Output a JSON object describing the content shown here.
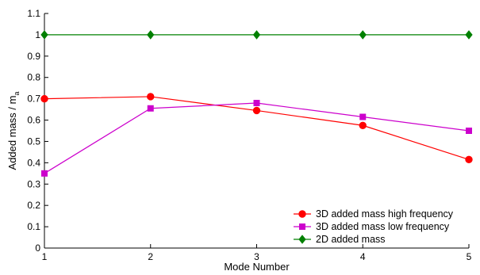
{
  "chart_data": {
    "type": "line",
    "x": [
      1,
      2,
      3,
      4,
      5
    ],
    "xticks": [
      "1",
      "2",
      "3",
      "4",
      "5"
    ],
    "yticks": [
      "0",
      "0.1",
      "0.2",
      "0.3",
      "0.4",
      "0.5",
      "0.6",
      "0.7",
      "0.8",
      "0.9",
      "1",
      "1.1"
    ],
    "xlabel": "Mode Number",
    "ylabel_main": "Added mass / m",
    "ylabel_sub": "a",
    "xlim": [
      1,
      5
    ],
    "ylim": [
      0,
      1.1
    ],
    "grid": false,
    "legend_position": "bottom-right",
    "series": [
      {
        "name": "3D added mass high frequency",
        "color": "#ff0000",
        "marker": "circle",
        "values": [
          0.7,
          0.71,
          0.645,
          0.575,
          0.415
        ]
      },
      {
        "name": "3D added mass low frequency",
        "color": "#cc00cc",
        "marker": "square",
        "values": [
          0.35,
          0.655,
          0.68,
          0.615,
          0.55
        ]
      },
      {
        "name": "2D added mass",
        "color": "#008000",
        "marker": "diamond",
        "values": [
          1.0,
          1.0,
          1.0,
          1.0,
          1.0
        ]
      }
    ]
  }
}
